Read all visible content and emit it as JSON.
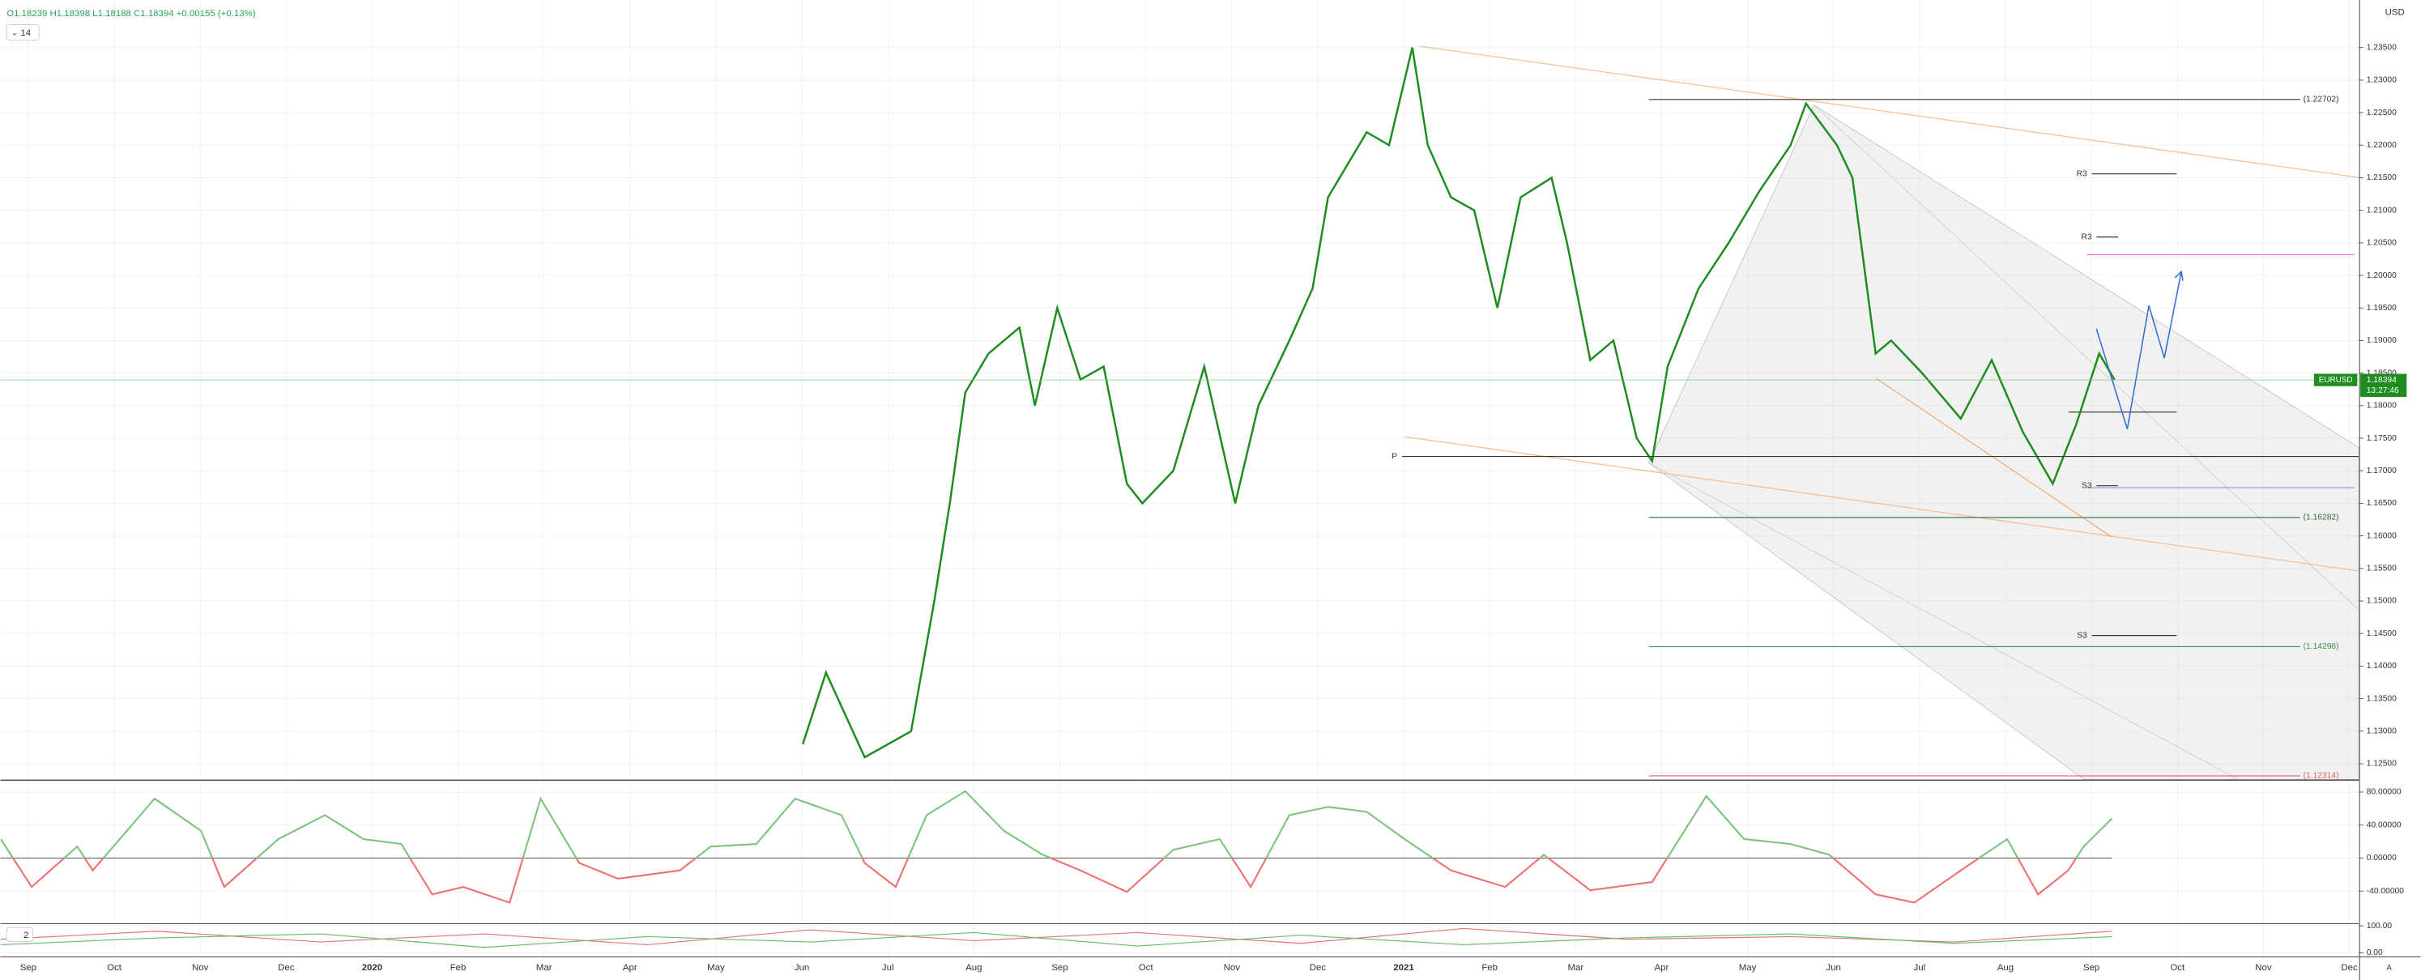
{
  "chart_data": [
    {
      "type": "line",
      "ohlc_label": "O1.18239 H1.18398 L1.18188 C1.18394 +0.00155 (+0.13%)",
      "badge": "14",
      "currency": "USD",
      "symbol": "EURUSD",
      "last_price": {
        "value": 1.18394,
        "label": "1.18394"
      },
      "countdown": "13:27:46",
      "xlim": [
        -0.323,
        27.11
      ],
      "xticks": [
        {
          "value": 0,
          "label": "Sep"
        },
        {
          "value": 1,
          "label": "Oct"
        },
        {
          "value": 2,
          "label": "Nov"
        },
        {
          "value": 3,
          "label": "Dec"
        },
        {
          "value": 4,
          "label": "2020"
        },
        {
          "value": 5,
          "label": "Feb"
        },
        {
          "value": 6,
          "label": "Mar"
        },
        {
          "value": 7,
          "label": "Apr"
        },
        {
          "value": 8,
          "label": "May"
        },
        {
          "value": 9,
          "label": "Jun"
        },
        {
          "value": 10,
          "label": "Jul"
        },
        {
          "value": 11,
          "label": "Aug"
        },
        {
          "value": 12,
          "label": "Sep"
        },
        {
          "value": 13,
          "label": "Oct"
        },
        {
          "value": 14,
          "label": "Nov"
        },
        {
          "value": 15,
          "label": "Dec"
        },
        {
          "value": 16,
          "label": "2021"
        },
        {
          "value": 17,
          "label": "Feb"
        },
        {
          "value": 18,
          "label": "Mar"
        },
        {
          "value": 19,
          "label": "Apr"
        },
        {
          "value": 20,
          "label": "May"
        },
        {
          "value": 21,
          "label": "Jun"
        },
        {
          "value": 22,
          "label": "Jul"
        },
        {
          "value": 23,
          "label": "Aug"
        },
        {
          "value": 24,
          "label": "Sep"
        },
        {
          "value": 25,
          "label": "Oct"
        },
        {
          "value": 26,
          "label": "Nov"
        },
        {
          "value": 27,
          "label": "Dec"
        }
      ],
      "ylim": [
        1.1226,
        1.2423
      ],
      "yticks": [
        {
          "value": 1.125,
          "label": "1.12500"
        },
        {
          "value": 1.13,
          "label": "1.13000"
        },
        {
          "value": 1.135,
          "label": "1.13500"
        },
        {
          "value": 1.14,
          "label": "1.14000"
        },
        {
          "value": 1.145,
          "label": "1.14500"
        },
        {
          "value": 1.15,
          "label": "1.15000"
        },
        {
          "value": 1.155,
          "label": "1.15500"
        },
        {
          "value": 1.16,
          "label": "1.16000"
        },
        {
          "value": 1.165,
          "label": "1.16500"
        },
        {
          "value": 1.17,
          "label": "1.17000"
        },
        {
          "value": 1.175,
          "label": "1.17500"
        },
        {
          "value": 1.18,
          "label": "1.18000"
        },
        {
          "value": 1.185,
          "label": "1.18500"
        },
        {
          "value": 1.19,
          "label": "1.19000"
        },
        {
          "value": 1.195,
          "label": "1.19500"
        },
        {
          "value": 1.2,
          "label": "1.20000"
        },
        {
          "value": 1.205,
          "label": "1.20500"
        },
        {
          "value": 1.21,
          "label": "1.21000"
        },
        {
          "value": 1.215,
          "label": "1.21500"
        },
        {
          "value": 1.22,
          "label": "1.22000"
        },
        {
          "value": 1.225,
          "label": "1.22500"
        },
        {
          "value": 1.23,
          "label": "1.23000"
        },
        {
          "value": 1.235,
          "label": "1.23500"
        }
      ],
      "grid": true,
      "series": [
        {
          "color": "#1e8c1e",
          "x": [
            9.01,
            9.28,
            9.73,
            10.27,
            10.54,
            10.72,
            10.9,
            11.17,
            11.53,
            11.71,
            11.97,
            12.24,
            12.51,
            12.78,
            12.96,
            13.32,
            13.68,
            14.04,
            14.31,
            14.67,
            14.94,
            15.12,
            15.57,
            15.83,
            16.1,
            16.28,
            16.55,
            16.82,
            17.09,
            17.36,
            17.72,
            17.9,
            18.17,
            18.44,
            18.71,
            18.89,
            19.07,
            19.43,
            19.78,
            20.14,
            20.5,
            20.68,
            21.04,
            21.22,
            21.49,
            21.67,
            22.03,
            22.48,
            22.84,
            23.2,
            23.55,
            23.82,
            24.09,
            24.27
          ],
          "values": [
            1.128,
            1.139,
            1.126,
            1.13,
            1.15,
            1.165,
            1.182,
            1.188,
            1.192,
            1.18,
            1.195,
            1.184,
            1.186,
            1.168,
            1.165,
            1.17,
            1.186,
            1.165,
            1.18,
            1.19,
            1.198,
            1.212,
            1.222,
            1.22,
            1.235,
            1.22,
            1.212,
            1.21,
            1.195,
            1.212,
            1.215,
            1.205,
            1.187,
            1.19,
            1.175,
            1.1715,
            1.186,
            1.198,
            1.205,
            1.213,
            1.22,
            1.2264,
            1.22,
            1.215,
            1.188,
            1.19,
            1.185,
            1.178,
            1.187,
            1.176,
            1.168,
            1.177,
            1.188,
            1.18394
          ]
        }
      ],
      "levels": [
        {
          "label": "(1.22702)",
          "value": 1.22702,
          "color": "#333333"
        },
        {
          "label": "R3",
          "value": 1.2156,
          "color": "#333333"
        },
        {
          "label": "R3",
          "value": 1.2059,
          "color": "#333333"
        },
        {
          "label": "P",
          "value": 1.1722,
          "color": "#333333"
        },
        {
          "label": "S3",
          "value": 1.1677,
          "color": "#333333"
        },
        {
          "label": "S3",
          "value": 1.1447,
          "color": "#333333"
        },
        {
          "label": "(1.16282)",
          "value": 1.16282,
          "color": "#2e6b3a"
        },
        {
          "label": "(1.14298)",
          "value": 1.14298,
          "color": "#3f8f4f"
        },
        {
          "label": "(1.12314)",
          "value": 1.12314,
          "color": "#e06060"
        }
      ]
    },
    {
      "type": "line",
      "xlim": [
        -0.323,
        27.11
      ],
      "ylim": [
        -78.6,
        93.5
      ],
      "yticks": [
        {
          "value": -40,
          "label": "-40.00000"
        },
        {
          "value": 0,
          "label": "0.00000"
        },
        {
          "value": 40,
          "label": "40.00000"
        },
        {
          "value": 80,
          "label": "80.00000"
        }
      ],
      "grid": true,
      "positive_color": "#7cc47c",
      "negative_color": "#f07070",
      "series": [
        {
          "x": [
            -0.32,
            0.04,
            0.57,
            0.75,
            1.47,
            2.01,
            2.28,
            2.91,
            3.45,
            3.9,
            4.34,
            4.7,
            5.06,
            5.6,
            5.96,
            6.41,
            6.86,
            7.58,
            7.94,
            8.47,
            8.92,
            9.46,
            9.73,
            10.09,
            10.45,
            10.9,
            11.35,
            11.8,
            12.24,
            12.78,
            13.32,
            13.86,
            14.22,
            14.67,
            15.12,
            15.57,
            16.01,
            16.55,
            17.18,
            17.63,
            18.17,
            18.89,
            19.52,
            19.96,
            20.5,
            20.95,
            21.49,
            21.94,
            22.48,
            23.02,
            23.38,
            23.73,
            23.91,
            24.24
          ],
          "values": [
            23,
            -35,
            14,
            -15,
            72,
            33,
            -35,
            23,
            52,
            23,
            17,
            -44,
            -35,
            -54,
            72,
            -6,
            -25,
            -15,
            14,
            17,
            72,
            52,
            -6,
            -35,
            52,
            81,
            33,
            4,
            -15,
            -41,
            10,
            23,
            -35,
            52,
            62,
            56,
            23,
            -15,
            -35,
            4,
            -39,
            -29,
            75,
            23,
            17,
            4,
            -44,
            -54,
            -15,
            23,
            -44,
            -15,
            14,
            48
          ]
        }
      ]
    },
    {
      "type": "line",
      "badge": "2",
      "xlim": [
        -0.323,
        27.11
      ],
      "ylim": [
        -15,
        105
      ],
      "yticks": [
        {
          "value": 0,
          "label": "0.00"
        },
        {
          "value": 100,
          "label": "100.00"
        }
      ],
      "grid": true,
      "x": [
        -0.32,
        1.5,
        3.4,
        5.3,
        7.2,
        9.1,
        11,
        12.9,
        14.8,
        16.7,
        18.6,
        20.5,
        22.4,
        24.24
      ],
      "series": [
        {
          "color": "#e57373",
          "values": [
            50,
            80,
            40,
            70,
            30,
            85,
            45,
            75,
            35,
            90,
            50,
            60,
            40,
            80
          ]
        },
        {
          "color": "#66bb6a",
          "values": [
            30,
            55,
            70,
            20,
            60,
            40,
            75,
            25,
            65,
            30,
            55,
            70,
            35,
            60
          ]
        }
      ]
    }
  ]
}
